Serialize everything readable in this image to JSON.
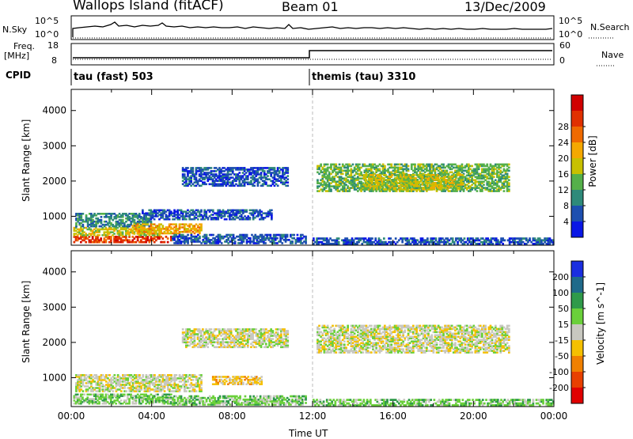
{
  "header": {
    "station": "Wallops Island (fitACF)",
    "beam": "Beam 01",
    "date": "13/Dec/2009"
  },
  "top_panels": {
    "nsky": {
      "left_label": "N.Sky",
      "right_label": "N.Search",
      "left_ticks": [
        "10^5",
        "10^0"
      ],
      "right_ticks": [
        "10^5",
        "10^0"
      ]
    },
    "freq": {
      "left_label_1": "Freq.",
      "left_label_2": "[MHz]",
      "right_label": "Nave",
      "left_ticks": [
        "18",
        "8"
      ],
      "right_ticks": [
        "60",
        "0"
      ]
    },
    "cpid": {
      "label": "CPID",
      "segment_1": "tau (fast) 503",
      "segment_2": "themis (tau) 3310"
    }
  },
  "chart_data": [
    {
      "type": "heatmap",
      "title": "",
      "parameter": "Power",
      "ylabel": "Slant Range [km]",
      "xlabel": "",
      "y_ticks": [
        "1000",
        "2000",
        "3000",
        "4000"
      ],
      "ylim": [
        180,
        4600
      ],
      "xlim_hours": [
        0,
        24
      ],
      "colorbar_label": "Power [dB]",
      "colorbar_ticks": [
        "4",
        "8",
        "12",
        "16",
        "20",
        "24",
        "28"
      ],
      "colorbar_colors": [
        "#0a17e6",
        "#1d4fb0",
        "#2e8a7a",
        "#55b04a",
        "#c8c000",
        "#f5a800",
        "#ef6a00",
        "#e03000",
        "#d00000"
      ],
      "regions": [
        {
          "t0": 0.1,
          "t1": 5.0,
          "r0": 250,
          "r1": 450,
          "level": 7
        },
        {
          "t0": 0.1,
          "t1": 4.5,
          "r0": 450,
          "r1": 700,
          "level": 4
        },
        {
          "t0": 0.2,
          "t1": 4.0,
          "r0": 700,
          "r1": 1100,
          "level": 2
        },
        {
          "t0": 3.0,
          "t1": 6.5,
          "r0": 500,
          "r1": 800,
          "level": 5
        },
        {
          "t0": 5.0,
          "t1": 11.7,
          "r0": 220,
          "r1": 500,
          "level": 1
        },
        {
          "t0": 3.5,
          "t1": 10.0,
          "r0": 900,
          "r1": 1200,
          "level": 1
        },
        {
          "t0": 5.5,
          "t1": 10.8,
          "r0": 1850,
          "r1": 2400,
          "level": 1
        },
        {
          "t0": 12.2,
          "t1": 21.8,
          "r0": 1700,
          "r1": 2500,
          "level": 3
        },
        {
          "t0": 14.5,
          "t1": 19.5,
          "r0": 1750,
          "r1": 2200,
          "level": 4
        },
        {
          "t0": 12.0,
          "t1": 24.0,
          "r0": 200,
          "r1": 400,
          "level": 1
        }
      ]
    },
    {
      "type": "heatmap",
      "title": "",
      "parameter": "Velocity",
      "ylabel": "Slant Range [km]",
      "xlabel": "Time UT",
      "x_ticks": [
        "00:00",
        "04:00",
        "08:00",
        "12:00",
        "16:00",
        "20:00",
        "00:00"
      ],
      "y_ticks": [
        "1000",
        "2000",
        "3000",
        "4000"
      ],
      "ylim": [
        180,
        4600
      ],
      "xlim_hours": [
        0,
        24
      ],
      "colorbar_label": "Velocity [m s^-1]",
      "colorbar_ticks": [
        "200",
        "100",
        "50",
        "15",
        "-15",
        "-50",
        "-100",
        "-200"
      ],
      "colorbar_colors": [
        "#1a2ee0",
        "#1f6a8a",
        "#2f9a4a",
        "#6ad03a",
        "#c8c8c0",
        "#f5c000",
        "#f08000",
        "#e84000",
        "#e00000"
      ],
      "regions": [
        {
          "t0": 0.1,
          "t1": 5.0,
          "r0": 250,
          "r1": 550,
          "level": 3
        },
        {
          "t0": 0.2,
          "t1": 6.5,
          "r0": 600,
          "r1": 1100,
          "level": 4
        },
        {
          "t0": 5.0,
          "t1": 11.7,
          "r0": 220,
          "r1": 500,
          "level": 3
        },
        {
          "t0": 5.5,
          "t1": 10.8,
          "r0": 1850,
          "r1": 2400,
          "level": 4
        },
        {
          "t0": 12.2,
          "t1": 21.8,
          "r0": 1700,
          "r1": 2500,
          "level": 4
        },
        {
          "t0": 7.0,
          "t1": 9.5,
          "r0": 800,
          "r1": 1050,
          "level": 5
        },
        {
          "t0": 12.0,
          "t1": 24.0,
          "r0": 200,
          "r1": 400,
          "level": 3
        }
      ]
    }
  ]
}
